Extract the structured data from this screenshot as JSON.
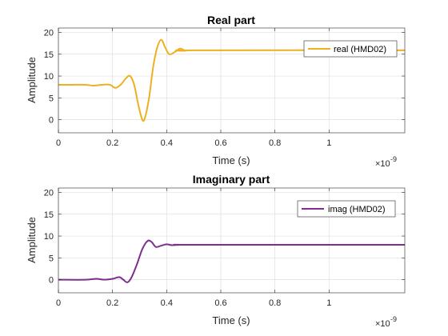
{
  "chart_data": [
    {
      "type": "line",
      "title": "Real part",
      "xlabel": "Time (s)",
      "ylabel": "Amplitude",
      "x_exponent_base": "×10",
      "x_exponent_power": "-9",
      "xlim": [
        0,
        1.28
      ],
      "ylim": [
        -3,
        21
      ],
      "xticks": [
        0,
        0.2,
        0.4,
        0.6,
        0.8,
        1
      ],
      "xtick_labels": [
        "0",
        "0.2",
        "0.4",
        "0.6",
        "0.8",
        "1"
      ],
      "yticks": [
        0,
        5,
        10,
        15,
        20
      ],
      "ytick_labels": [
        "0",
        "5",
        "10",
        "15",
        "20"
      ],
      "grid": true,
      "legend_position": "top-right",
      "series": [
        {
          "name": "real (HMD02)",
          "color": "#EDB120",
          "x": [
            0,
            0.05,
            0.1,
            0.13,
            0.16,
            0.19,
            0.21,
            0.23,
            0.25,
            0.265,
            0.28,
            0.295,
            0.31,
            0.32,
            0.335,
            0.35,
            0.365,
            0.38,
            0.395,
            0.41,
            0.43,
            0.45,
            0.47,
            0.5,
            1.28
          ],
          "y": [
            8,
            8,
            8,
            7.8,
            8,
            8,
            7.3,
            8,
            9.5,
            10,
            8,
            3.5,
            0,
            0.5,
            5,
            12,
            16.5,
            18.3,
            16.5,
            15,
            15.5,
            16.3,
            15.8,
            15.9,
            15.9
          ]
        }
      ]
    },
    {
      "type": "line",
      "title": "Imaginary part",
      "xlabel": "Time (s)",
      "ylabel": "Amplitude",
      "x_exponent_base": "×10",
      "x_exponent_power": "-9",
      "xlim": [
        0,
        1.28
      ],
      "ylim": [
        -3,
        21
      ],
      "xticks": [
        0,
        0.2,
        0.4,
        0.6,
        0.8,
        1
      ],
      "xtick_labels": [
        "0",
        "0.2",
        "0.4",
        "0.6",
        "0.8",
        "1"
      ],
      "yticks": [
        0,
        5,
        10,
        15,
        20
      ],
      "ytick_labels": [
        "0",
        "5",
        "10",
        "15",
        "20"
      ],
      "grid": true,
      "legend_position": "top-right",
      "series": [
        {
          "name": "imag (HMD02)",
          "color": "#7E2F8E",
          "x": [
            0,
            0.1,
            0.14,
            0.17,
            0.2,
            0.225,
            0.24,
            0.255,
            0.27,
            0.29,
            0.31,
            0.33,
            0.345,
            0.36,
            0.38,
            0.4,
            0.42,
            0.45,
            0.5,
            1.28
          ],
          "y": [
            0,
            0,
            0.2,
            0,
            0.2,
            0.6,
            0,
            -0.6,
            0.5,
            3.5,
            7,
            8.9,
            8.6,
            7.5,
            7.8,
            8.1,
            7.9,
            8,
            8,
            8
          ]
        }
      ]
    }
  ]
}
